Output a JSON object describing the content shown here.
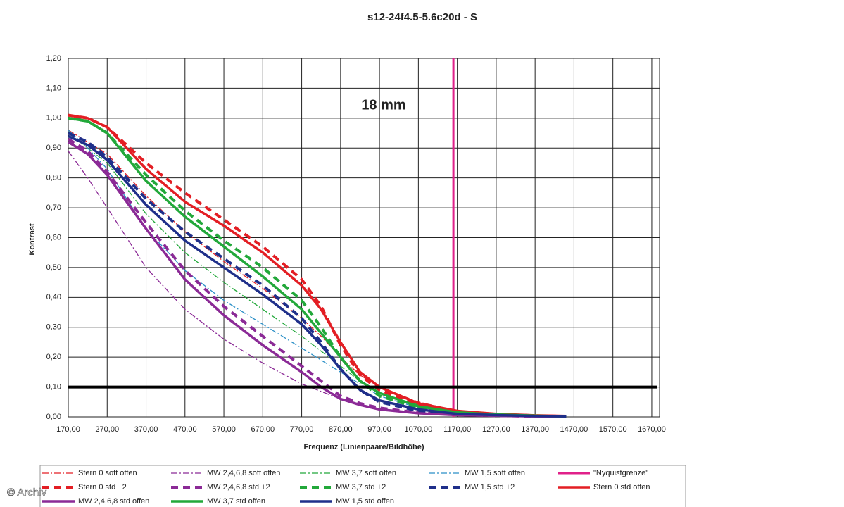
{
  "chart_data": {
    "type": "line",
    "title": "s12-24f4.5-5.6c20d - S",
    "annotation": "18 mm",
    "watermark": "© Archiv",
    "x_label": "Frequenz (Linienpaare/Bildhöhe)",
    "y_label": "Kontrast",
    "xlim": [
      170,
      1690
    ],
    "ylim": [
      0,
      1.2
    ],
    "xticks": [
      {
        "value": 170,
        "label": "170,00"
      },
      {
        "value": 270,
        "label": "270,00"
      },
      {
        "value": 370,
        "label": "370,00"
      },
      {
        "value": 470,
        "label": "470,00"
      },
      {
        "value": 570,
        "label": "570,00"
      },
      {
        "value": 670,
        "label": "670,00"
      },
      {
        "value": 770,
        "label": "770,00"
      },
      {
        "value": 870,
        "label": "870,00"
      },
      {
        "value": 970,
        "label": "970,00"
      },
      {
        "value": 1070,
        "label": "1070,00"
      },
      {
        "value": 1170,
        "label": "1170,00"
      },
      {
        "value": 1270,
        "label": "1270,00"
      },
      {
        "value": 1370,
        "label": "1370,00"
      },
      {
        "value": 1470,
        "label": "1470,00"
      },
      {
        "value": 1570,
        "label": "1570,00"
      },
      {
        "value": 1670,
        "label": "1670,00"
      }
    ],
    "yticks": [
      {
        "value": 0,
        "label": "0,00"
      },
      {
        "value": 0.1,
        "label": "0,10"
      },
      {
        "value": 0.2,
        "label": "0,20"
      },
      {
        "value": 0.3,
        "label": "0,30"
      },
      {
        "value": 0.4,
        "label": "0,40"
      },
      {
        "value": 0.5,
        "label": "0,50"
      },
      {
        "value": 0.6,
        "label": "0,60"
      },
      {
        "value": 0.7,
        "label": "0,70"
      },
      {
        "value": 0.8,
        "label": "0,80"
      },
      {
        "value": 0.9,
        "label": "0,90"
      },
      {
        "value": 1,
        "label": "1,00"
      },
      {
        "value": 1.1,
        "label": "1,10"
      },
      {
        "value": 1.2,
        "label": "1,20"
      }
    ],
    "grid": true,
    "hline": 0.1,
    "hline_color": "#000000",
    "x": [
      170,
      220,
      270,
      370,
      470,
      570,
      670,
      770,
      820,
      870,
      920,
      970,
      1070,
      1170,
      1270,
      1370,
      1450
    ],
    "series": [
      {
        "name": "Stern 0 soft offen",
        "color": "#e31e24",
        "style": "dashdot",
        "values": [
          0.96,
          0.92,
          0.88,
          0.74,
          0.62,
          0.52,
          0.43,
          0.33,
          0.27,
          0.2,
          0.14,
          0.1,
          0.05,
          0.02,
          0.01,
          0.005,
          0.003
        ]
      },
      {
        "name": "MW 2,4,6,8 soft offen",
        "color": "#8b2a96",
        "style": "dashdot",
        "values": [
          0.89,
          0.8,
          0.7,
          0.5,
          0.36,
          0.26,
          0.18,
          0.11,
          0.085,
          0.06,
          0.04,
          0.025,
          0.012,
          0.006,
          0.004,
          0.002,
          0.001
        ]
      },
      {
        "name": "MW 3,7 soft offen",
        "color": "#22a83a",
        "style": "dashdot",
        "values": [
          0.95,
          0.9,
          0.85,
          0.68,
          0.55,
          0.45,
          0.36,
          0.27,
          0.22,
          0.17,
          0.12,
          0.08,
          0.04,
          0.015,
          0.008,
          0.004,
          0.002
        ]
      },
      {
        "name": "MW 1,5 soft offen",
        "color": "#2a8fc7",
        "style": "dashdot",
        "values": [
          0.96,
          0.9,
          0.83,
          0.63,
          0.49,
          0.39,
          0.31,
          0.23,
          0.19,
          0.15,
          0.11,
          0.07,
          0.03,
          0.012,
          0.006,
          0.003,
          0.002
        ]
      },
      {
        "name": "\"Nyquistgrenze\"",
        "color": "#e0218a",
        "style": "solid",
        "x": [
          1160,
          1160
        ],
        "values": [
          0,
          1.2
        ]
      },
      {
        "name": "Stern 0 std +2",
        "color": "#e31e24",
        "style": "dash",
        "values": [
          1.01,
          1.0,
          0.97,
          0.85,
          0.75,
          0.66,
          0.57,
          0.46,
          0.37,
          0.24,
          0.14,
          0.09,
          0.04,
          0.018,
          0.009,
          0.004,
          0.002
        ]
      },
      {
        "name": "MW 2,4,6,8 std +2",
        "color": "#8b2a96",
        "style": "dash",
        "values": [
          0.93,
          0.89,
          0.82,
          0.65,
          0.49,
          0.37,
          0.27,
          0.17,
          0.12,
          0.07,
          0.045,
          0.03,
          0.014,
          0.007,
          0.004,
          0.002,
          0.001
        ]
      },
      {
        "name": "MW 3,7 std +2",
        "color": "#22a83a",
        "style": "dash",
        "values": [
          1.0,
          0.99,
          0.95,
          0.81,
          0.69,
          0.59,
          0.5,
          0.39,
          0.3,
          0.2,
          0.12,
          0.07,
          0.03,
          0.013,
          0.007,
          0.003,
          0.002
        ]
      },
      {
        "name": "MW 1,5 std +2",
        "color": "#1f2f8a",
        "style": "dash",
        "values": [
          0.95,
          0.92,
          0.87,
          0.73,
          0.62,
          0.53,
          0.44,
          0.33,
          0.25,
          0.16,
          0.09,
          0.05,
          0.02,
          0.01,
          0.005,
          0.003,
          0.002
        ]
      },
      {
        "name": "Stern 0 std offen",
        "color": "#e31e24",
        "style": "solid",
        "values": [
          1.01,
          1.0,
          0.97,
          0.83,
          0.72,
          0.64,
          0.55,
          0.44,
          0.36,
          0.25,
          0.15,
          0.1,
          0.045,
          0.02,
          0.01,
          0.005,
          0.003
        ]
      },
      {
        "name": "MW 2,4,6,8 std offen",
        "color": "#8b2a96",
        "style": "solid",
        "values": [
          0.92,
          0.88,
          0.81,
          0.63,
          0.46,
          0.34,
          0.24,
          0.15,
          0.1,
          0.06,
          0.04,
          0.025,
          0.012,
          0.006,
          0.004,
          0.002,
          0.001
        ]
      },
      {
        "name": "MW 3,7 std offen",
        "color": "#22a83a",
        "style": "solid",
        "values": [
          1.0,
          0.99,
          0.95,
          0.79,
          0.67,
          0.57,
          0.47,
          0.36,
          0.28,
          0.2,
          0.12,
          0.08,
          0.035,
          0.015,
          0.008,
          0.004,
          0.002
        ]
      },
      {
        "name": "MW 1,5 std offen",
        "color": "#1f2f8a",
        "style": "solid",
        "values": [
          0.94,
          0.91,
          0.86,
          0.71,
          0.59,
          0.5,
          0.41,
          0.31,
          0.24,
          0.16,
          0.09,
          0.055,
          0.025,
          0.01,
          0.006,
          0.003,
          0.002
        ]
      }
    ]
  }
}
